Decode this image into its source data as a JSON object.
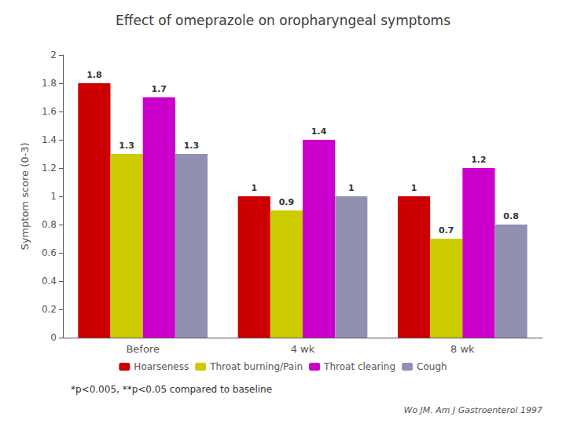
{
  "chart_data": {
    "type": "bar",
    "title": "Effect of omeprazole on oropharyngeal symptoms",
    "ylabel": "Symptom score (0-3)",
    "categories": [
      "Before",
      "4 wk",
      "8 wk"
    ],
    "series": [
      {
        "name": "Hoarseness",
        "color": "#CC0000",
        "values": [
          1.8,
          1,
          1
        ]
      },
      {
        "name": "Throat burning/Pain",
        "color": "#CCCC00",
        "values": [
          1.3,
          0.9,
          0.7
        ]
      },
      {
        "name": "Throat clearing",
        "color": "#CC00CC",
        "values": [
          1.7,
          1.4,
          1.2
        ]
      },
      {
        "name": "Cough",
        "color": "#9090B0",
        "values": [
          1.3,
          1,
          0.8
        ]
      }
    ],
    "ylim": [
      0,
      2
    ],
    "yticks": [
      0,
      0.2,
      0.4,
      0.6,
      0.8,
      1,
      1.2,
      1.4,
      1.6,
      1.8,
      2
    ],
    "grid": false,
    "legend": "bottom",
    "data_labels": true,
    "annotations": [
      "*p<0.005, **p<0.05 compared to baseline",
      "Wo JM. Am J Gastroenterol 1997"
    ]
  }
}
